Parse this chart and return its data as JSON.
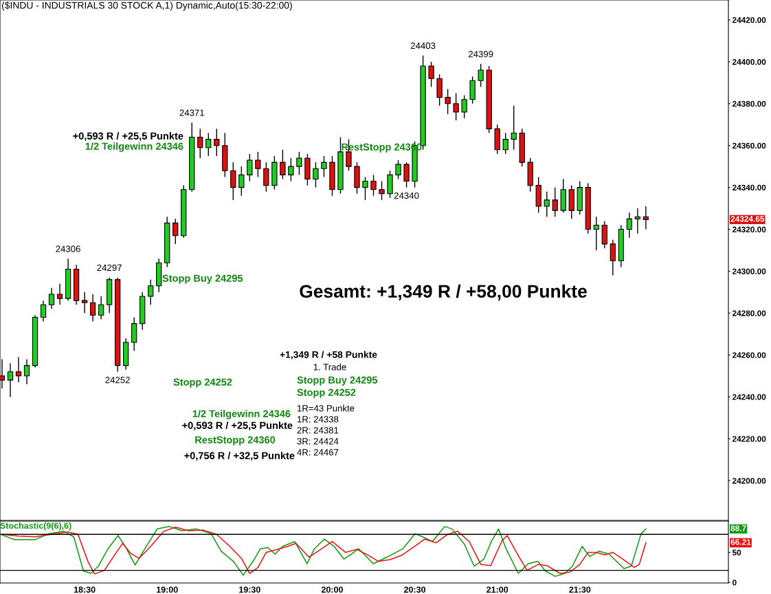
{
  "chart_data": [
    {
      "type": "candlestick",
      "title": "($INDU - INDUSTRIALS 30 STOCK A,1) Dynamic,Auto(15:30-22:00)",
      "x": [
        18.0,
        18.05,
        18.1,
        18.15,
        18.2,
        18.25,
        18.3,
        18.35,
        18.4,
        18.45,
        18.5,
        18.55,
        18.6,
        18.65,
        18.7,
        18.75,
        18.8,
        18.85,
        18.9,
        18.95,
        19.0,
        19.05,
        19.1,
        19.15,
        19.2,
        19.25,
        19.3,
        19.35,
        19.4,
        19.45,
        19.5,
        19.55,
        19.6,
        19.65,
        19.7,
        19.75,
        19.8,
        19.85,
        19.9,
        19.95,
        20.0,
        20.05,
        20.1,
        20.15,
        20.2,
        20.25,
        20.3,
        20.35,
        20.4,
        20.45,
        20.5,
        20.55,
        20.6,
        20.65,
        20.7,
        20.75,
        20.8,
        20.85,
        20.9,
        20.95,
        21.0,
        21.05,
        21.1,
        21.15,
        21.2,
        21.25,
        21.3,
        21.35,
        21.4,
        21.45,
        21.5,
        21.55,
        21.6,
        21.65,
        21.7,
        21.75,
        21.8,
        21.85,
        21.9
      ],
      "ohlc": [
        [
          24250,
          24258,
          24244,
          24248
        ],
        [
          24248,
          24256,
          24240,
          24252
        ],
        [
          24252,
          24259,
          24247,
          24250
        ],
        [
          24250,
          24258,
          24246,
          24255
        ],
        [
          24255,
          24279,
          24254,
          24278
        ],
        [
          24278,
          24286,
          24276,
          24284
        ],
        [
          24284,
          24292,
          24282,
          24289
        ],
        [
          24289,
          24294,
          24284,
          24287
        ],
        [
          24287,
          24306,
          24286,
          24301
        ],
        [
          24301,
          24303,
          24284,
          24286
        ],
        [
          24286,
          24290,
          24280,
          24285
        ],
        [
          24285,
          24289,
          24276,
          24279
        ],
        [
          24279,
          24288,
          24277,
          24284
        ],
        [
          24284,
          24297,
          24280,
          24296
        ],
        [
          24296,
          24297,
          24252,
          24255
        ],
        [
          24255,
          24268,
          24253,
          24266
        ],
        [
          24266,
          24278,
          24262,
          24275
        ],
        [
          24275,
          24290,
          24272,
          24288
        ],
        [
          24288,
          24296,
          24284,
          24293
        ],
        [
          24293,
          24306,
          24290,
          24304
        ],
        [
          24304,
          24326,
          24302,
          24323
        ],
        [
          24323,
          24325,
          24313,
          24317
        ],
        [
          24317,
          24341,
          24316,
          24339
        ],
        [
          24339,
          24371,
          24338,
          24364
        ],
        [
          24364,
          24368,
          24354,
          24359
        ],
        [
          24359,
          24366,
          24355,
          24363
        ],
        [
          24363,
          24368,
          24355,
          24360
        ],
        [
          24360,
          24366,
          24345,
          24348
        ],
        [
          24348,
          24352,
          24334,
          24340
        ],
        [
          24340,
          24350,
          24336,
          24346
        ],
        [
          24346,
          24356,
          24343,
          24353
        ],
        [
          24353,
          24357,
          24345,
          24349
        ],
        [
          24349,
          24352,
          24338,
          24341
        ],
        [
          24341,
          24355,
          24339,
          24352
        ],
        [
          24352,
          24358,
          24344,
          24346
        ],
        [
          24346,
          24354,
          24343,
          24350
        ],
        [
          24350,
          24357,
          24346,
          24354
        ],
        [
          24354,
          24356,
          24341,
          24344
        ],
        [
          24344,
          24352,
          24340,
          24349
        ],
        [
          24349,
          24355,
          24345,
          24352
        ],
        [
          24352,
          24355,
          24336,
          24339
        ],
        [
          24339,
          24364,
          24337,
          24357
        ],
        [
          24357,
          24363,
          24348,
          24350
        ],
        [
          24350,
          24352,
          24337,
          24340
        ],
        [
          24340,
          24345,
          24334,
          24343
        ],
        [
          24343,
          24346,
          24336,
          24339
        ],
        [
          24339,
          24343,
          24334,
          24337
        ],
        [
          24337,
          24348,
          24335,
          24346
        ],
        [
          24346,
          24353,
          24344,
          24351
        ],
        [
          24351,
          24352,
          24340,
          24343
        ],
        [
          24343,
          24362,
          24340,
          24360
        ],
        [
          24360,
          24403,
          24358,
          24398
        ],
        [
          24398,
          24400,
          24388,
          24392
        ],
        [
          24392,
          24394,
          24379,
          24383
        ],
        [
          24383,
          24387,
          24375,
          24380
        ],
        [
          24380,
          24385,
          24372,
          24376
        ],
        [
          24376,
          24384,
          24373,
          24382
        ],
        [
          24382,
          24393,
          24380,
          24391
        ],
        [
          24391,
          24399,
          24388,
          24396
        ],
        [
          24396,
          24398,
          24366,
          24368
        ],
        [
          24368,
          24370,
          24356,
          24358
        ],
        [
          24358,
          24366,
          24356,
          24363
        ],
        [
          24363,
          24379,
          24358,
          24366
        ],
        [
          24366,
          24368,
          24350,
          24352
        ],
        [
          24352,
          24354,
          24338,
          24341
        ],
        [
          24341,
          24345,
          24328,
          24331
        ],
        [
          24331,
          24338,
          24326,
          24334
        ],
        [
          24334,
          24340,
          24326,
          24329
        ],
        [
          24329,
          24344,
          24328,
          24339
        ],
        [
          24339,
          24341,
          24325,
          24329
        ],
        [
          24329,
          24343,
          24327,
          24340
        ],
        [
          24340,
          24342,
          24318,
          24320
        ],
        [
          24320,
          24326,
          24310,
          24322
        ],
        [
          24322,
          24324,
          24311,
          24313
        ],
        [
          24313,
          24315,
          24298,
          24305
        ],
        [
          24305,
          24322,
          24302,
          24320
        ],
        [
          24320,
          24328,
          24316,
          24325
        ],
        [
          24325,
          24330,
          24318,
          24326
        ],
        [
          24326,
          24331,
          24320,
          24324.65
        ]
      ],
      "colors": [
        "#dd1111",
        "#22cc22",
        "#dd1111",
        "#22cc22",
        "#22cc22",
        "#22cc22",
        "#22cc22",
        "#dd1111",
        "#22cc22",
        "#dd1111",
        "#dd1111",
        "#dd1111",
        "#22cc22",
        "#22cc22",
        "#dd1111",
        "#22cc22",
        "#22cc22",
        "#22cc22",
        "#22cc22",
        "#22cc22",
        "#22cc22",
        "#dd1111",
        "#22cc22",
        "#22cc22",
        "#dd1111",
        "#22cc22",
        "#dd1111",
        "#dd1111",
        "#dd1111",
        "#22cc22",
        "#22cc22",
        "#dd1111",
        "#dd1111",
        "#22cc22",
        "#dd1111",
        "#22cc22",
        "#22cc22",
        "#dd1111",
        "#22cc22",
        "#22cc22",
        "#dd1111",
        "#22cc22",
        "#dd1111",
        "#dd1111",
        "#22cc22",
        "#dd1111",
        "#dd1111",
        "#22cc22",
        "#22cc22",
        "#dd1111",
        "#22cc22",
        "#22cc22",
        "#dd1111",
        "#dd1111",
        "#dd1111",
        "#dd1111",
        "#22cc22",
        "#22cc22",
        "#22cc22",
        "#dd1111",
        "#dd1111",
        "#22cc22",
        "#22cc22",
        "#dd1111",
        "#dd1111",
        "#dd1111",
        "#22cc22",
        "#dd1111",
        "#22cc22",
        "#dd1111",
        "#22cc22",
        "#dd1111",
        "#22cc22",
        "#dd1111",
        "#dd1111",
        "#22cc22",
        "#22cc22",
        "#22cc22",
        "#dd1111"
      ],
      "xlim": [
        17.9875,
        22.4
      ],
      "ylim": [
        24181,
        24429.5
      ],
      "yticks": [
        {
          "value": 24200,
          "label": "24200.00"
        },
        {
          "value": 24220,
          "label": "24220.00"
        },
        {
          "value": 24240,
          "label": "24240.00"
        },
        {
          "value": 24260,
          "label": "24260.00"
        },
        {
          "value": 24280,
          "label": "24280.00"
        },
        {
          "value": 24300,
          "label": "24300.00"
        },
        {
          "value": 24320,
          "label": "24320.00"
        },
        {
          "value": 24340,
          "label": "24340.00"
        },
        {
          "value": 24360,
          "label": "24360.00"
        },
        {
          "value": 24380,
          "label": "24380.00"
        },
        {
          "value": 24400,
          "label": "24400.00"
        },
        {
          "value": 24420,
          "label": "24420.00"
        }
      ],
      "tick_labels": "y",
      "grid": false,
      "legend": false,
      "annotations": [
        {
          "text": "24306",
          "x": 18.4,
          "y": 24306
        },
        {
          "text": "24297",
          "x": 18.65,
          "y": 24297
        },
        {
          "text": "24252",
          "x": 18.7,
          "y": 24252
        },
        {
          "text": "24371",
          "x": 19.15,
          "y": 24371
        },
        {
          "text": "24403",
          "x": 20.55,
          "y": 24403
        },
        {
          "text": "24399",
          "x": 20.9,
          "y": 24399
        },
        {
          "text": "24340",
          "x": 20.45,
          "y": 24340
        },
        "24324.65",
        "+0,593 R / +25,5 Punkte",
        "1/2 Teilgewinn 24346",
        "Stopp Buy 24295",
        "RestStopp 24360",
        "Gesamt: +1,349 R / +58,00 Punkte",
        "+1,349 R / +58 Punkte",
        "1. Trade",
        "Stopp Buy 24295",
        "Stopp 24252",
        "1R=43 Punkte",
        "1R: 24338",
        "2R: 24381",
        "3R: 24424",
        "4R: 24467",
        "Stopp 24252",
        "1/2 Teilgewinn 24346",
        "+0,593 R / +25,5 Punkte",
        "RestStopp 24360",
        "+0,756 R / +32,5 Punkte"
      ]
    },
    {
      "type": "line",
      "title": "Stochastic(9(6),6)",
      "series": [
        {
          "color": "#119911",
          "x": [
            18.0,
            18.077,
            18.196,
            18.285,
            18.374,
            18.434,
            18.493,
            18.538,
            18.583,
            18.642,
            18.702,
            18.746,
            18.806,
            18.865,
            18.94,
            19.014,
            19.089,
            19.178,
            19.267,
            19.327,
            19.401,
            19.461,
            19.52,
            19.565,
            19.61,
            19.654,
            19.699,
            19.773,
            19.848,
            19.892,
            19.952,
            20.011,
            20.071,
            20.115,
            20.16,
            20.249,
            20.339,
            20.428,
            20.502,
            20.547,
            20.607,
            20.681,
            20.726,
            20.8,
            20.86,
            20.919,
            20.964,
            21.008,
            21.053,
            21.127,
            21.187,
            21.246,
            21.291,
            21.351,
            21.41,
            21.455,
            21.514,
            21.559,
            21.618,
            21.678,
            21.767,
            21.812,
            21.871,
            21.9
          ],
          "values": [
            79,
            71,
            71,
            81,
            85,
            76,
            19,
            15,
            27,
            56,
            78,
            60,
            29,
            56,
            89,
            93,
            86,
            89,
            81,
            52,
            35,
            12,
            35,
            56,
            58,
            47,
            60,
            68,
            31,
            56,
            72,
            60,
            39,
            47,
            56,
            31,
            43,
            56,
            81,
            76,
            68,
            93,
            89,
            64,
            27,
            39,
            68,
            89,
            56,
            15,
            31,
            35,
            19,
            10,
            15,
            27,
            60,
            43,
            52,
            47,
            23,
            27,
            81,
            89
          ]
        },
        {
          "color": "#ee1111",
          "x": [
            18.0,
            18.1,
            18.2,
            18.3,
            18.4,
            18.46,
            18.52,
            18.56,
            18.62,
            18.68,
            18.73,
            18.78,
            18.83,
            18.9,
            18.98,
            19.05,
            19.13,
            19.22,
            19.3,
            19.38,
            19.45,
            19.5,
            19.55,
            19.6,
            19.67,
            19.73,
            19.78,
            19.86,
            19.93,
            20.0,
            20.08,
            20.15,
            20.22,
            20.28,
            20.35,
            20.42,
            20.5,
            20.56,
            20.63,
            20.7,
            20.76,
            20.83,
            20.9,
            20.96,
            21.03,
            21.06,
            21.12,
            21.18,
            21.25,
            21.3,
            21.38,
            21.44,
            21.5,
            21.55,
            21.6,
            21.65,
            21.7,
            21.78,
            21.83,
            21.86,
            21.9
          ],
          "values": [
            80,
            77,
            76,
            80,
            84,
            80,
            35,
            14,
            20,
            45,
            65,
            48,
            40,
            60,
            85,
            92,
            86,
            87,
            80,
            60,
            40,
            15,
            25,
            50,
            55,
            60,
            65,
            42,
            55,
            68,
            50,
            55,
            45,
            35,
            38,
            45,
            60,
            72,
            66,
            80,
            85,
            68,
            30,
            28,
            70,
            78,
            48,
            20,
            30,
            28,
            15,
            17,
            30,
            50,
            50,
            46,
            50,
            35,
            25,
            30,
            66
          ]
        }
      ],
      "xlim": [
        17.9875,
        22.4
      ],
      "ylim": [
        -1,
        102
      ],
      "xticks": [
        {
          "value": 18.5,
          "label": "18:30"
        },
        {
          "value": 19.0,
          "label": "19:00"
        },
        {
          "value": 19.5,
          "label": "19:30"
        },
        {
          "value": 20.0,
          "label": "20:00"
        },
        {
          "value": 20.5,
          "label": "20:30"
        },
        {
          "value": 21.0,
          "label": "21:00"
        },
        {
          "value": 21.5,
          "label": "21:30"
        }
      ],
      "yticks": [
        0,
        50
      ],
      "ref_lines": [
        {
          "axis": "y",
          "value": 80,
          "color": "#000000"
        },
        {
          "axis": "y",
          "value": 20,
          "color": "#000000"
        }
      ],
      "grid": false,
      "legend": false,
      "annotations": [
        "88.7",
        "66.21"
      ]
    }
  ]
}
